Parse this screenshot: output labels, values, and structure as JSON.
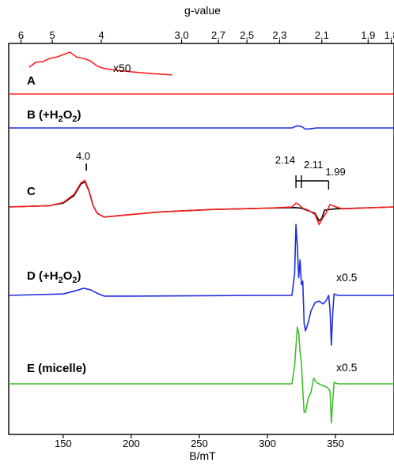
{
  "chart_data": {
    "type": "line",
    "xlabel": "B/mT",
    "x_ticks": [
      150,
      200,
      250,
      300,
      350
    ],
    "xlim": [
      110,
      393
    ],
    "top_axis_label": "g-value",
    "g_ticks": [
      {
        "label": "6",
        "B": 119
      },
      {
        "label": "5",
        "B": 142
      },
      {
        "label": "4",
        "B": 178
      },
      {
        "label": "3.0",
        "B": 237
      },
      {
        "label": "2.7",
        "B": 264
      },
      {
        "label": "2.5",
        "B": 285
      },
      {
        "label": "2.3",
        "B": 309
      },
      {
        "label": "2.1",
        "B": 340
      },
      {
        "label": "1.9",
        "B": 374
      },
      {
        "label": "1.8",
        "B": 391
      }
    ],
    "colors": {
      "red": "#ff2020",
      "blue": "#1f2de0",
      "black": "#000000",
      "green": "#3dbf2a"
    },
    "panels": [
      {
        "id": "A",
        "name": "A",
        "color": "#ff2020",
        "scale_label": "x50"
      },
      {
        "id": "B",
        "name": "B (+H",
        "sub": "2",
        "mid": "O",
        "sub2": "2",
        "tail": ")",
        "color": "#1f2de0"
      },
      {
        "id": "C",
        "name": "C",
        "colors": [
          "#ff2020",
          "#000000"
        ]
      },
      {
        "id": "D",
        "name": "D (+H",
        "sub": "2",
        "mid": "O",
        "sub2": "2",
        "tail": ")",
        "color": "#1f2de0",
        "scale_label": "x0.5"
      },
      {
        "id": "E",
        "name": "E (micelle)",
        "color": "#3dbf2a",
        "scale_label": "x0.5"
      }
    ],
    "annotations": [
      {
        "label": "4.0",
        "B": 167
      },
      {
        "label": "2.14",
        "B": 321
      },
      {
        "label": "2.11",
        "B": 325
      },
      {
        "label": "1.99",
        "B": 345
      }
    ],
    "series": [
      {
        "name": "A",
        "color": "#ff2020",
        "points": [
          [
            125,
            0.4
          ],
          [
            130,
            0.6
          ],
          [
            135,
            0.62
          ],
          [
            140,
            0.75
          ],
          [
            145,
            0.8
          ],
          [
            150,
            0.9
          ],
          [
            155,
            1.0
          ],
          [
            160,
            0.8
          ],
          [
            165,
            0.75
          ],
          [
            170,
            0.65
          ],
          [
            175,
            0.45
          ],
          [
            180,
            0.35
          ],
          [
            190,
            0.28
          ],
          [
            200,
            0.22
          ],
          [
            215,
            0.15
          ],
          [
            230,
            0.1
          ]
        ]
      },
      {
        "name": "A baseline",
        "color": "#ff2020",
        "points": [
          [
            110,
            0
          ],
          [
            393,
            0
          ]
        ]
      },
      {
        "name": "B",
        "color": "#1f2de0",
        "points": [
          [
            110,
            0
          ],
          [
            318,
            0
          ],
          [
            322,
            0.09
          ],
          [
            325,
            0.06
          ],
          [
            328,
            -0.05
          ],
          [
            332,
            -0.03
          ],
          [
            336,
            0
          ],
          [
            393,
            0
          ]
        ]
      },
      {
        "name": "C black",
        "color": "#000000",
        "points": [
          [
            110,
            0
          ],
          [
            140,
            0.02
          ],
          [
            150,
            0.06
          ],
          [
            158,
            0.18
          ],
          [
            163,
            0.36
          ],
          [
            166,
            0.4
          ],
          [
            169,
            0.25
          ],
          [
            172,
            0.02
          ],
          [
            175,
            -0.1
          ],
          [
            180,
            -0.16
          ],
          [
            190,
            -0.14
          ],
          [
            220,
            -0.08
          ],
          [
            260,
            -0.04
          ],
          [
            300,
            -0.02
          ],
          [
            320,
            -0.01
          ],
          [
            325,
            -0.02
          ],
          [
            330,
            -0.06
          ],
          [
            335,
            -0.1
          ],
          [
            338,
            -0.22
          ],
          [
            340,
            -0.18
          ],
          [
            342,
            -0.05
          ],
          [
            350,
            -0.03
          ],
          [
            393,
            0
          ]
        ]
      },
      {
        "name": "C red",
        "color": "#ff2020",
        "points": [
          [
            110,
            0
          ],
          [
            140,
            0.02
          ],
          [
            150,
            0.07
          ],
          [
            158,
            0.2
          ],
          [
            163,
            0.38
          ],
          [
            166,
            0.42
          ],
          [
            169,
            0.26
          ],
          [
            172,
            0.02
          ],
          [
            175,
            -0.1
          ],
          [
            180,
            -0.16
          ],
          [
            190,
            -0.14
          ],
          [
            220,
            -0.08
          ],
          [
            260,
            -0.04
          ],
          [
            300,
            -0.02
          ],
          [
            318,
            0
          ],
          [
            321,
            0.06
          ],
          [
            323,
            0.04
          ],
          [
            326,
            -0.02
          ],
          [
            330,
            -0.05
          ],
          [
            335,
            -0.12
          ],
          [
            338,
            -0.28
          ],
          [
            340,
            -0.2
          ],
          [
            343,
            -0.1
          ],
          [
            346,
            0.04
          ],
          [
            349,
            0.01
          ],
          [
            355,
            -0.03
          ],
          [
            393,
            0
          ]
        ]
      },
      {
        "name": "D",
        "color": "#1f2de0",
        "points": [
          [
            110,
            0
          ],
          [
            150,
            0.02
          ],
          [
            160,
            0.07
          ],
          [
            165,
            0.1
          ],
          [
            170,
            0.08
          ],
          [
            175,
            0.03
          ],
          [
            180,
            -0.01
          ],
          [
            200,
            -0.01
          ],
          [
            300,
            0
          ],
          [
            318,
            0
          ],
          [
            320,
            0.3
          ],
          [
            321,
            1.0
          ],
          [
            322,
            0.7
          ],
          [
            323,
            0.25
          ],
          [
            324,
            0.5
          ],
          [
            325,
            0.15
          ],
          [
            326,
            0.2
          ],
          [
            327,
            -0.4
          ],
          [
            328,
            -0.5
          ],
          [
            330,
            -0.38
          ],
          [
            332,
            -0.22
          ],
          [
            335,
            -0.1
          ],
          [
            338,
            -0.08
          ],
          [
            341,
            -0.12
          ],
          [
            343,
            -0.08
          ],
          [
            344,
            -0.04
          ],
          [
            345,
            0
          ],
          [
            346,
            -0.2
          ],
          [
            347,
            -0.7
          ],
          [
            348,
            -0.25
          ],
          [
            349,
            0.02
          ],
          [
            352,
            0
          ],
          [
            393,
            0
          ]
        ]
      },
      {
        "name": "E",
        "color": "#3dbf2a",
        "points": [
          [
            110,
            0
          ],
          [
            200,
            0
          ],
          [
            300,
            0
          ],
          [
            318,
            0
          ],
          [
            320,
            0.25
          ],
          [
            322,
            0.8
          ],
          [
            323,
            0.72
          ],
          [
            324,
            0.45
          ],
          [
            325,
            0.3
          ],
          [
            326,
            -0.1
          ],
          [
            327,
            -0.4
          ],
          [
            328,
            -0.4
          ],
          [
            330,
            -0.2
          ],
          [
            332,
            -0.12
          ],
          [
            334,
            0.08
          ],
          [
            336,
            0.02
          ],
          [
            340,
            -0.02
          ],
          [
            344,
            -0.05
          ],
          [
            346,
            -0.1
          ],
          [
            347,
            -0.55
          ],
          [
            348,
            -0.25
          ],
          [
            349,
            0.02
          ],
          [
            352,
            0
          ],
          [
            393,
            0
          ]
        ]
      }
    ]
  }
}
